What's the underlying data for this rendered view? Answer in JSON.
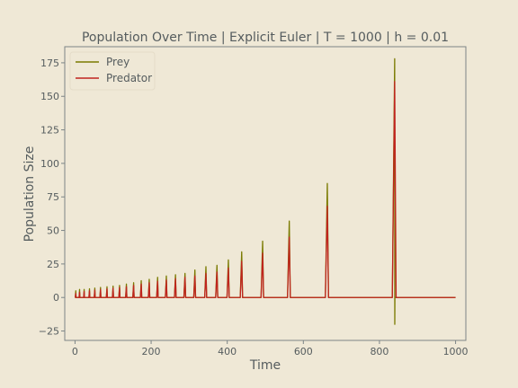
{
  "colors": {
    "background": "#efe8d6",
    "prey": "#7a7a00",
    "predator": "#c0231e",
    "text": "#555c5e",
    "frame": "#7c8486"
  },
  "chart_data": {
    "type": "line",
    "title": "Population Over Time | Explicit Euler | T = 1000 | h = 0.01",
    "xlabel": "Time",
    "ylabel": "Population Size",
    "xlim": [
      -27,
      1027
    ],
    "ylim": [
      -32,
      187
    ],
    "xticks": [
      0,
      200,
      400,
      600,
      800,
      1000
    ],
    "yticks": [
      -25,
      0,
      25,
      50,
      75,
      100,
      125,
      150,
      175
    ],
    "grid": false,
    "legend": "top-left",
    "baseline": 0,
    "x_end": 1000,
    "series": [
      {
        "name": "Prey",
        "color": "#7a7a00",
        "peaks": [
          [
            2,
            5
          ],
          [
            12,
            6
          ],
          [
            24,
            6
          ],
          [
            38,
            6.5
          ],
          [
            52,
            7
          ],
          [
            67,
            7.5
          ],
          [
            84,
            8
          ],
          [
            100,
            8.5
          ],
          [
            117,
            9
          ],
          [
            135,
            10
          ],
          [
            154,
            11
          ],
          [
            174,
            12.5
          ],
          [
            195,
            13.5
          ],
          [
            217,
            15
          ],
          [
            240,
            16
          ],
          [
            264,
            17
          ],
          [
            289,
            18
          ],
          [
            315,
            20.5
          ],
          [
            344,
            23
          ],
          [
            373,
            24
          ],
          [
            403,
            28
          ],
          [
            438,
            34
          ],
          [
            493,
            42
          ],
          [
            563,
            57
          ],
          [
            663,
            85
          ],
          [
            840,
            178
          ]
        ],
        "troughs": [
          [
            840,
            -20
          ]
        ]
      },
      {
        "name": "Predator",
        "color": "#c0231e",
        "peaks": [
          [
            2,
            3
          ],
          [
            12,
            4
          ],
          [
            24,
            4.5
          ],
          [
            38,
            5
          ],
          [
            52,
            5.5
          ],
          [
            67,
            6
          ],
          [
            84,
            6.5
          ],
          [
            100,
            7
          ],
          [
            117,
            7.5
          ],
          [
            135,
            8
          ],
          [
            154,
            9
          ],
          [
            174,
            10
          ],
          [
            195,
            11
          ],
          [
            217,
            12
          ],
          [
            240,
            13
          ],
          [
            264,
            14
          ],
          [
            289,
            15
          ],
          [
            315,
            16
          ],
          [
            344,
            18
          ],
          [
            373,
            19
          ],
          [
            403,
            22
          ],
          [
            438,
            27
          ],
          [
            493,
            33
          ],
          [
            563,
            45
          ],
          [
            663,
            68
          ],
          [
            840,
            161
          ]
        ],
        "troughs": []
      }
    ]
  }
}
